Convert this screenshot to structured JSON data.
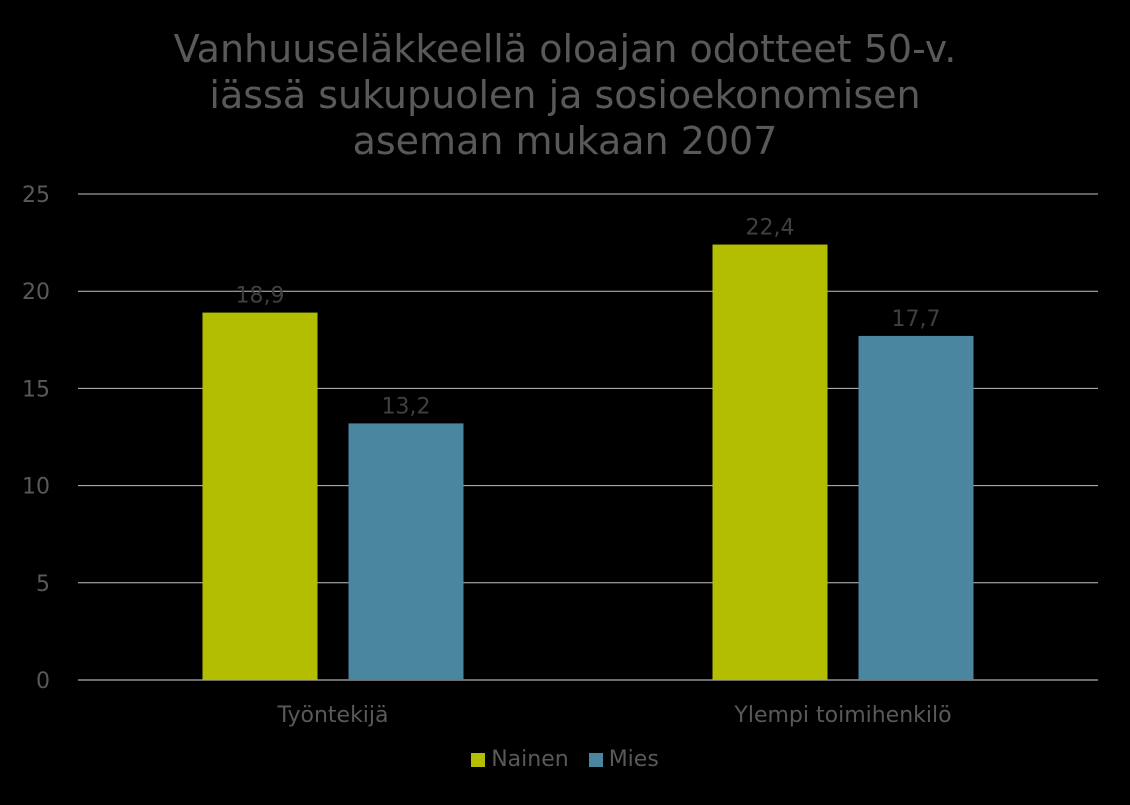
{
  "chart_data": {
    "type": "bar",
    "title_lines": [
      "Vanhuuseläkkeellä oloajan odotteet 50-v.",
      "iässä sukupuolen ja sosioekonomisen",
      "aseman mukaan 2007"
    ],
    "categories": [
      "Työntekijä",
      "Ylempi toimihenkilö"
    ],
    "series": [
      {
        "name": "Nainen",
        "color": "#B3BE00",
        "values": [
          18.9,
          22.4
        ],
        "labels": [
          "18,9",
          "22,4"
        ]
      },
      {
        "name": "Mies",
        "color": "#4A86A0",
        "values": [
          13.2,
          17.7
        ],
        "labels": [
          "13,2",
          "17,7"
        ]
      }
    ],
    "ylim": [
      0,
      25
    ],
    "yticks": [
      0,
      5,
      10,
      15,
      20,
      25
    ],
    "grid": true,
    "legend_position": "bottom",
    "xlabel": "",
    "ylabel": ""
  }
}
